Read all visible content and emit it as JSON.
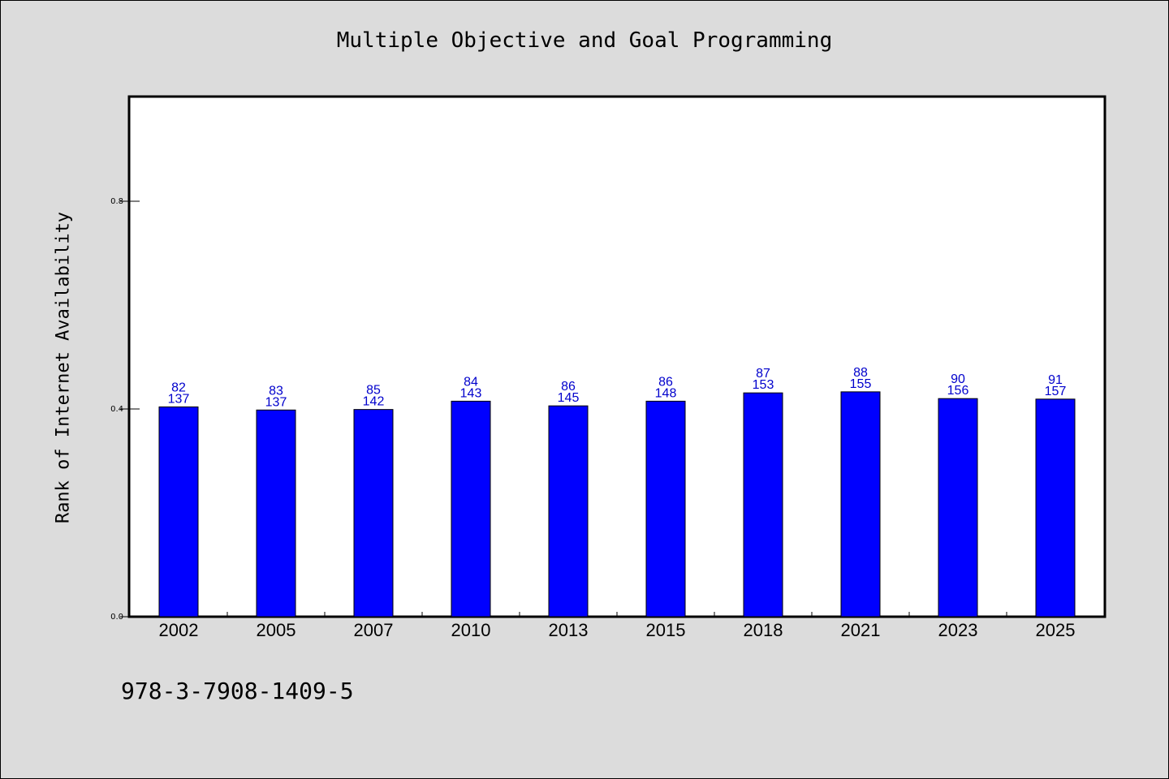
{
  "chart_data": {
    "type": "bar",
    "title": "Multiple Objective and Goal Programming",
    "ylabel": "Rank of Internet Availability",
    "xlabel": "",
    "categories": [
      "2002",
      "2005",
      "2007",
      "2010",
      "2013",
      "2015",
      "2018",
      "2021",
      "2023",
      "2025"
    ],
    "values": [
      0.404,
      0.398,
      0.399,
      0.415,
      0.406,
      0.415,
      0.431,
      0.433,
      0.42,
      0.419
    ],
    "labels_top": [
      "82",
      "83",
      "85",
      "84",
      "86",
      "86",
      "87",
      "88",
      "90",
      "91"
    ],
    "labels_bottom": [
      "137",
      "137",
      "142",
      "143",
      "145",
      "148",
      "153",
      "155",
      "156",
      "157"
    ],
    "ylim": [
      0,
      1.0
    ],
    "yticks": [
      0.0,
      0.4,
      0.8
    ],
    "ytick_labels": [
      "0.0",
      "0.4",
      "0.8"
    ],
    "grid": false,
    "bar_color": "#0000ff",
    "label_color": "#0000cc"
  },
  "footer": {
    "isbn": "978-3-7908-1409-5"
  }
}
